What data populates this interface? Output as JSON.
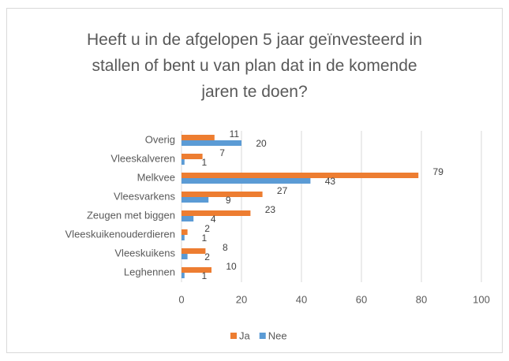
{
  "chart_data": {
    "type": "barh",
    "title": "Heeft u in de afgelopen 5 jaar geïnvesteerd in\nstallen of bent u van plan dat in de komende\njaren te doen?",
    "categories": [
      "Overig",
      "Vleeskalveren",
      "Melkvee",
      "Vleesvarkens",
      "Zeugen met biggen",
      "Vleeskuikenouderdieren",
      "Vleeskuikens",
      "Leghennen"
    ],
    "series": [
      {
        "name": "Ja",
        "color": "#ed7d31",
        "values": [
          11,
          7,
          79,
          27,
          23,
          2,
          8,
          10
        ]
      },
      {
        "name": "Nee",
        "color": "#5b9bd5",
        "values": [
          20,
          1,
          43,
          9,
          4,
          1,
          2,
          1
        ]
      }
    ],
    "xlim": [
      0,
      100
    ],
    "xticks": [
      0,
      20,
      40,
      60,
      80,
      100
    ],
    "grid": true,
    "legend": "bottom"
  }
}
